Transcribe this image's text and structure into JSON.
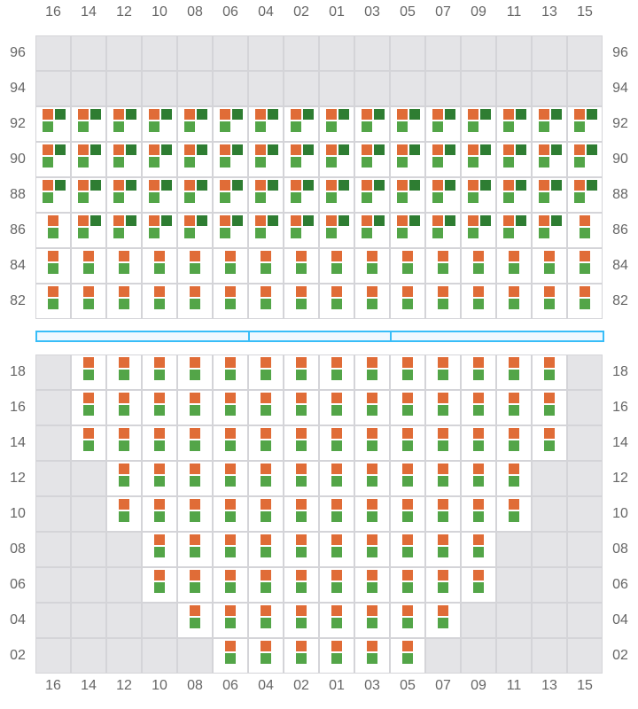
{
  "columns": [
    "16",
    "14",
    "12",
    "10",
    "08",
    "06",
    "04",
    "02",
    "01",
    "03",
    "05",
    "07",
    "09",
    "11",
    "13",
    "15"
  ],
  "colors": {
    "orange": "#e06c37",
    "dark_green": "#2e7d32",
    "light_green": "#53a548",
    "unavailable": "#e4e4e7",
    "grid": "#d4d4d8",
    "divider": "#38bdf8"
  },
  "legend_codes": {
    "x": "unavailable",
    "s": "orange + light green",
    "d": "orange + dark green + light green"
  },
  "top_section": [
    {
      "label": "96",
      "cells": "xxxxxxxxxxxxxxxx"
    },
    {
      "label": "94",
      "cells": "xxxxxxxxxxxxxxxx"
    },
    {
      "label": "92",
      "cells": "dddddddddddddddd"
    },
    {
      "label": "90",
      "cells": "dddddddddddddddd"
    },
    {
      "label": "88",
      "cells": "dddddddddddddddd"
    },
    {
      "label": "86",
      "cells": "sdddddddddddddds"
    },
    {
      "label": "84",
      "cells": "ssssssssssssssss"
    },
    {
      "label": "82",
      "cells": "ssssssssssssssss"
    }
  ],
  "bottom_section": [
    {
      "label": "18",
      "cells": "xssssssssssssssx"
    },
    {
      "label": "16",
      "cells": "xssssssssssssssx"
    },
    {
      "label": "14",
      "cells": "xssssssssssssssx"
    },
    {
      "label": "12",
      "cells": "xxssssssssssssxx"
    },
    {
      "label": "10",
      "cells": "xxssssssssssssxx"
    },
    {
      "label": "08",
      "cells": "xxxssssssssssxxx"
    },
    {
      "label": "06",
      "cells": "xxxssssssssssxxx"
    },
    {
      "label": "04",
      "cells": "xxxxssssssssxxxx"
    },
    {
      "label": "02",
      "cells": "xxxxxssssssxxxxx"
    }
  ]
}
